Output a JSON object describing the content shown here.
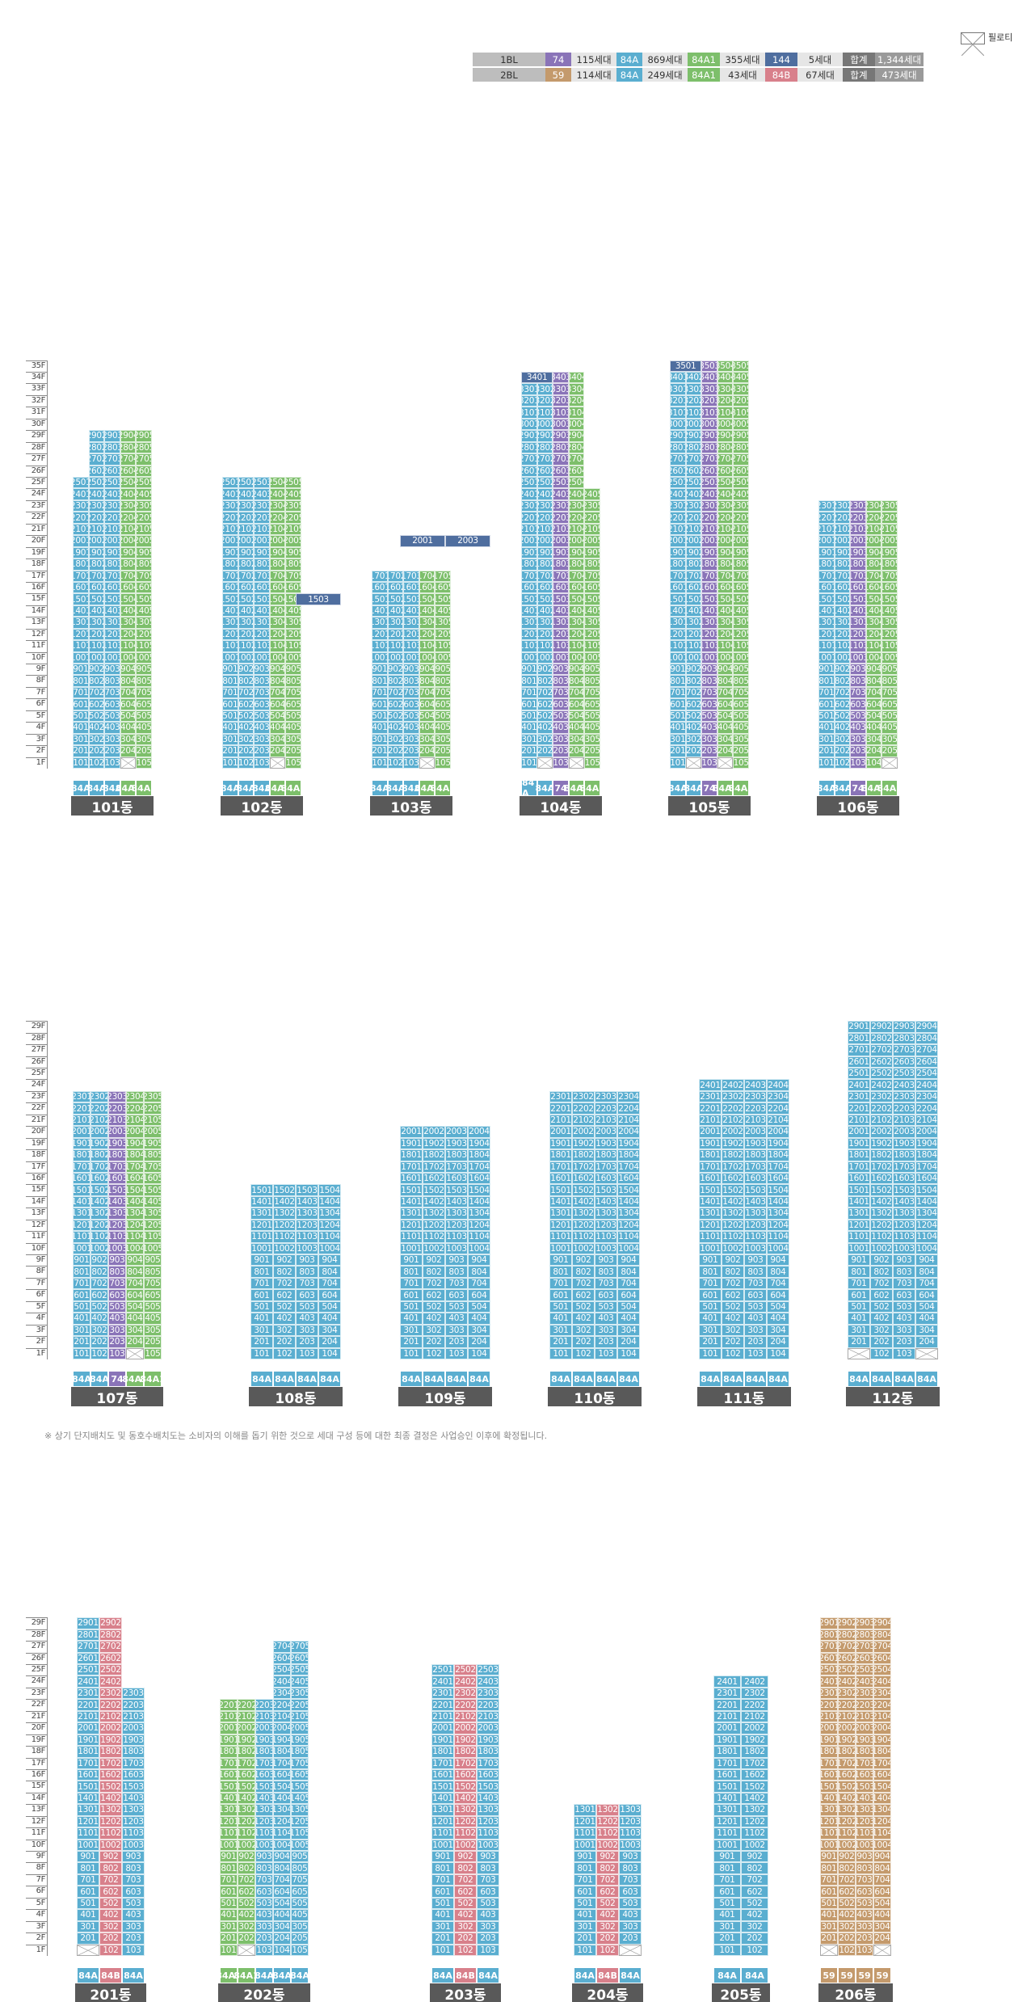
{
  "legend": {
    "pilotis_label": "필로티",
    "rows": [
      {
        "block": "1BL",
        "items": [
          {
            "type": "74",
            "count": "115세대"
          },
          {
            "type": "84A",
            "count": "869세대"
          },
          {
            "type": "84A1",
            "count": "355세대"
          },
          {
            "type": "144",
            "count": "5세대"
          }
        ],
        "total_label": "합계",
        "total": "1,344세대"
      },
      {
        "block": "2BL",
        "items": [
          {
            "type": "59",
            "count": "114세대"
          },
          {
            "type": "84A",
            "count": "249세대"
          },
          {
            "type": "84A1",
            "count": "43세대"
          },
          {
            "type": "84B",
            "count": "67세대"
          }
        ],
        "total_label": "합계",
        "total": "473세대"
      }
    ]
  },
  "colors": {
    "84A": "#5aaed0",
    "84A1": "#7dbf6b",
    "74": "#8a74b8",
    "144": "#4f6e9f",
    "59": "#c49a6c",
    "84B": "#d8808b",
    "floor_label": "#444",
    "building_bar": "#595959"
  },
  "note": "※ 상기 단지배치도 및 동호수배치도는 소비자의 이해를 돕기 위한 것으로 세대 구성 등에 대한 최종 결정은 사업승인 이후에 확정됩니다.",
  "sections": [
    {
      "floors": 35,
      "top_floor_label": "35F",
      "buildings": [
        {
          "name": "101동",
          "cols": [
            {
              "type": "84A",
              "label": "84A",
              "range": [
                1,
                29
              ]
            },
            {
              "type": "84A",
              "label": "84A",
              "range": [
                1,
                29
              ]
            },
            {
              "type": "84A",
              "label": "84A",
              "range": [
                1,
                29
              ]
            },
            {
              "type": "84A1",
              "label": "84A1",
              "range": [
                1,
                29
              ]
            },
            {
              "type": "84A1",
              "label": "84A1",
              "range": [
                1,
                29
              ],
              "pilotis": []
            }
          ],
          "pilotis": {
            "4": [
              1
            ],
            "5": []
          },
          "top": {
            "1": 25,
            "2": 29,
            "3": 29,
            "4": 29,
            "5": 29
          },
          "start": {
            "4": 2,
            "5": 1
          }
        },
        {
          "name": "102동",
          "cols": [
            {
              "type": "84A",
              "label": "84A"
            },
            {
              "type": "84A",
              "label": "84A"
            },
            {
              "type": "84A",
              "label": "84A"
            },
            {
              "type": "84A1",
              "label": "84A1"
            },
            {
              "type": "84A1",
              "label": "84A1"
            }
          ],
          "top": {
            "1": 25,
            "2": 25,
            "3": 25,
            "4": 25,
            "5": 25
          },
          "start": {
            "4": 2
          }
        },
        {
          "name": "103동",
          "cols": [
            {
              "type": "84A",
              "label": "84A"
            },
            {
              "type": "84A",
              "label": "84A"
            },
            {
              "type": "84A",
              "label": "84A"
            },
            {
              "type": "84A1",
              "label": "84A1"
            },
            {
              "type": "84A1",
              "label": "84A1"
            }
          ],
          "top": {
            "1": 17,
            "2": 17,
            "3": 17,
            "4": 17,
            "5": 17
          },
          "start": {
            "4": 2
          }
        },
        {
          "name": "104동",
          "cols": [
            {
              "type": "84A",
              "label": "84 A"
            },
            {
              "type": "84A",
              "label": "84A"
            },
            {
              "type": "74",
              "label": "74"
            },
            {
              "type": "84A1",
              "label": "84A1"
            },
            {
              "type": "84A1",
              "label": "84A1"
            }
          ],
          "top": {
            "1": 34,
            "2": 33,
            "3": 34,
            "4": 34,
            "5": 24
          },
          "start": {
            "2": 2,
            "4": 2
          },
          "span34": [
            1,
            2
          ]
        },
        {
          "name": "105동",
          "cols": [
            {
              "type": "84A",
              "label": "84A"
            },
            {
              "type": "84A",
              "label": "84A"
            },
            {
              "type": "74",
              "label": "74"
            },
            {
              "type": "84A1",
              "label": "84A1"
            },
            {
              "type": "84A1",
              "label": "84A1"
            }
          ],
          "top": {
            "1": 35,
            "2": 34,
            "3": 35,
            "4": 35,
            "5": 35
          },
          "start": {
            "2": 2,
            "4": 2
          },
          "span35": [
            1,
            2
          ]
        },
        {
          "name": "106동",
          "cols": [
            {
              "type": "84A",
              "label": "84A"
            },
            {
              "type": "84A",
              "label": "84A"
            },
            {
              "type": "74",
              "label": "74"
            },
            {
              "type": "84A1",
              "label": "84A1"
            },
            {
              "type": "84A1",
              "label": "84A1"
            }
          ],
          "top": {
            "1": 23,
            "2": 23,
            "3": 23,
            "4": 23,
            "5": 23
          },
          "start": {
            "5": 2
          }
        }
      ]
    },
    {
      "floors": 29,
      "top_floor_label": "29F",
      "buildings": [
        {
          "name": "107동",
          "cols": [
            {
              "type": "84A",
              "label": "84A"
            },
            {
              "type": "84A",
              "label": "84A"
            },
            {
              "type": "74",
              "label": "74"
            },
            {
              "type": "84A1",
              "label": "84A1"
            },
            {
              "type": "84A1",
              "label": "84A1"
            }
          ],
          "top": {
            "1": 23,
            "2": 23,
            "3": 23,
            "4": 23,
            "5": 23
          },
          "start": {
            "4": 2
          }
        },
        {
          "name": "108동",
          "cols": [
            {
              "type": "84A",
              "label": "84A"
            },
            {
              "type": "84A",
              "label": "84A"
            },
            {
              "type": "84A",
              "label": "84A"
            },
            {
              "type": "84A",
              "label": "84A"
            }
          ],
          "top": {
            "1": 15,
            "2": 15,
            "3": 15,
            "4": 15
          },
          "span15": [
            3,
            4
          ]
        },
        {
          "name": "109동",
          "cols": [
            {
              "type": "84A",
              "label": "84A"
            },
            {
              "type": "84A",
              "label": "84A"
            },
            {
              "type": "84A",
              "label": "84A"
            },
            {
              "type": "84A",
              "label": "84A"
            }
          ],
          "top": {
            "1": 20,
            "2": 20,
            "3": 20,
            "4": 20
          },
          "span20": [
            [
              1,
              2
            ],
            [
              3,
              4
            ]
          ]
        },
        {
          "name": "110동",
          "cols": [
            {
              "type": "84A",
              "label": "84A"
            },
            {
              "type": "84A",
              "label": "84A"
            },
            {
              "type": "84A",
              "label": "84A"
            },
            {
              "type": "84A",
              "label": "84A"
            }
          ],
          "top": {
            "1": 23,
            "2": 23,
            "3": 23,
            "4": 23
          }
        },
        {
          "name": "111동",
          "cols": [
            {
              "type": "84A",
              "label": "84A"
            },
            {
              "type": "84A",
              "label": "84A"
            },
            {
              "type": "84A",
              "label": "84A"
            },
            {
              "type": "84A",
              "label": "84A"
            }
          ],
          "top": {
            "1": 24,
            "2": 24,
            "3": 24,
            "4": 24
          }
        },
        {
          "name": "112동",
          "cols": [
            {
              "type": "84A",
              "label": "84A"
            },
            {
              "type": "84A",
              "label": "84A"
            },
            {
              "type": "84A",
              "label": "84A"
            },
            {
              "type": "84A",
              "label": "84A"
            }
          ],
          "top": {
            "1": 29,
            "2": 29,
            "3": 29,
            "4": 29
          },
          "start": {
            "1": 2,
            "4": 2
          }
        }
      ]
    },
    {
      "floors": 29,
      "top_floor_label": "29F",
      "buildings": [
        {
          "name": "201동",
          "cols": [
            {
              "type": "84A",
              "label": "84A"
            },
            {
              "type": "84B",
              "label": "84B"
            },
            {
              "type": "84A",
              "label": "84A"
            }
          ],
          "top": {
            "1": 29,
            "2": 29,
            "3": 23
          },
          "start": {
            "1": 2
          }
        },
        {
          "name": "202동",
          "cols": [
            {
              "type": "84A1",
              "label": "84A1"
            },
            {
              "type": "84A1",
              "label": "84A1"
            },
            {
              "type": "84A",
              "label": "84A"
            },
            {
              "type": "84A",
              "label": "84A"
            },
            {
              "type": "84A",
              "label": "84A"
            }
          ],
          "top": {
            "1": 22,
            "2": 22,
            "3": 22,
            "4": 27,
            "5": 27
          },
          "start": {
            "2": 2
          }
        },
        {
          "name": "203동",
          "cols": [
            {
              "type": "84A",
              "label": "84A"
            },
            {
              "type": "84B",
              "label": "84B"
            },
            {
              "type": "84A",
              "label": "84A"
            }
          ],
          "top": {
            "1": 25,
            "2": 25,
            "3": 25
          }
        },
        {
          "name": "204동",
          "cols": [
            {
              "type": "84A",
              "label": "84A"
            },
            {
              "type": "84B",
              "label": "84B"
            },
            {
              "type": "84A",
              "label": "84A"
            }
          ],
          "top": {
            "1": 13,
            "2": 13,
            "3": 13
          },
          "start": {
            "3": 2
          }
        },
        {
          "name": "205동",
          "cols": [
            {
              "type": "84A",
              "label": "84A"
            },
            {
              "type": "84A",
              "label": "84A"
            }
          ],
          "top": {
            "1": 24,
            "2": 24
          }
        },
        {
          "name": "206동",
          "cols": [
            {
              "type": "59",
              "label": "59"
            },
            {
              "type": "59",
              "label": "59"
            },
            {
              "type": "59",
              "label": "59"
            },
            {
              "type": "59",
              "label": "59"
            }
          ],
          "top": {
            "1": 29,
            "2": 29,
            "3": 29,
            "4": 29
          },
          "start": {
            "1": 2,
            "4": 2
          }
        }
      ]
    }
  ]
}
